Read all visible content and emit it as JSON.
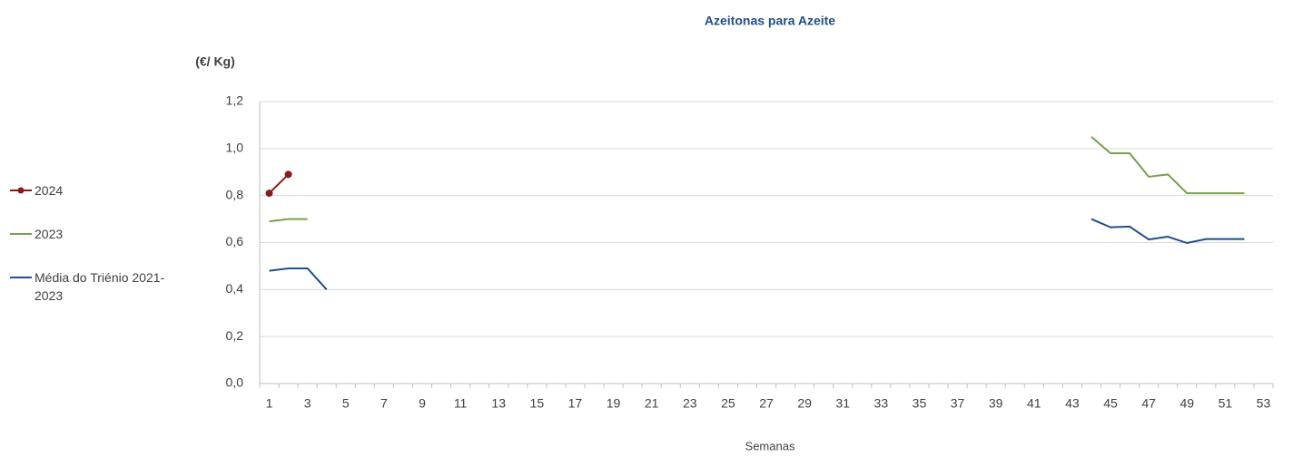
{
  "chart_data": {
    "type": "line",
    "title": "Azeitonas para Azeite",
    "y_label": "(€/ Kg)",
    "x_label": "Semanas",
    "categories": [
      "1",
      null,
      "3",
      null,
      "5",
      null,
      "7",
      null,
      "9",
      null,
      "11",
      null,
      "13",
      null,
      "15",
      null,
      "17",
      null,
      "19",
      null,
      "21",
      null,
      "23",
      null,
      "25",
      null,
      "27",
      null,
      "29",
      null,
      "31",
      null,
      "33",
      null,
      "35",
      null,
      "37",
      null,
      "39",
      null,
      "41",
      null,
      "43",
      null,
      "45",
      null,
      "47",
      null,
      "49",
      null,
      "51",
      null,
      "53"
    ],
    "series": [
      {
        "name": "2024",
        "color": "#8b1a1a",
        "marker": true,
        "values": [
          0.81,
          0.89,
          null,
          null,
          null,
          null,
          null,
          null,
          null,
          null,
          null,
          null,
          null,
          null,
          null,
          null,
          null,
          null,
          null,
          null,
          null,
          null,
          null,
          null,
          null,
          null,
          null,
          null,
          null,
          null,
          null,
          null,
          null,
          null,
          null,
          null,
          null,
          null,
          null,
          null,
          null,
          null,
          null,
          null,
          null,
          null,
          null,
          null,
          null,
          null,
          null,
          null,
          null
        ]
      },
      {
        "name": "2023",
        "color": "#77a04e",
        "marker": false,
        "values": [
          0.69,
          0.7,
          0.7,
          null,
          null,
          null,
          null,
          null,
          null,
          null,
          null,
          null,
          null,
          null,
          null,
          null,
          null,
          null,
          null,
          null,
          null,
          null,
          null,
          null,
          null,
          null,
          null,
          null,
          null,
          null,
          null,
          null,
          null,
          null,
          null,
          null,
          null,
          null,
          null,
          null,
          null,
          null,
          null,
          1.05,
          0.98,
          0.98,
          0.88,
          0.89,
          0.81,
          0.81,
          0.81,
          0.81,
          null
        ]
      },
      {
        "name": "Média do Triénio 2021-2023",
        "color": "#1f4e8c",
        "marker": false,
        "values": [
          0.48,
          0.49,
          0.49,
          0.4,
          null,
          null,
          null,
          null,
          null,
          null,
          null,
          null,
          null,
          null,
          null,
          null,
          null,
          null,
          null,
          null,
          null,
          null,
          null,
          null,
          null,
          null,
          null,
          null,
          null,
          null,
          null,
          null,
          null,
          null,
          null,
          null,
          null,
          null,
          null,
          null,
          null,
          null,
          null,
          0.7,
          0.665,
          0.668,
          0.613,
          0.625,
          0.598,
          0.615,
          0.615,
          0.615,
          null
        ]
      }
    ],
    "ylim": [
      0,
      1.2
    ],
    "yticks": [
      {
        "value": 0,
        "label": "0,0"
      },
      {
        "value": 0.2,
        "label": "0,2"
      },
      {
        "value": 0.4,
        "label": "0,4"
      },
      {
        "value": 0.6,
        "label": "0,6"
      },
      {
        "value": 0.8,
        "label": "0,8"
      },
      {
        "value": 1,
        "label": "1,0"
      },
      {
        "value": 1.2,
        "label": "1,2"
      }
    ],
    "grid": true,
    "legend": "left"
  }
}
